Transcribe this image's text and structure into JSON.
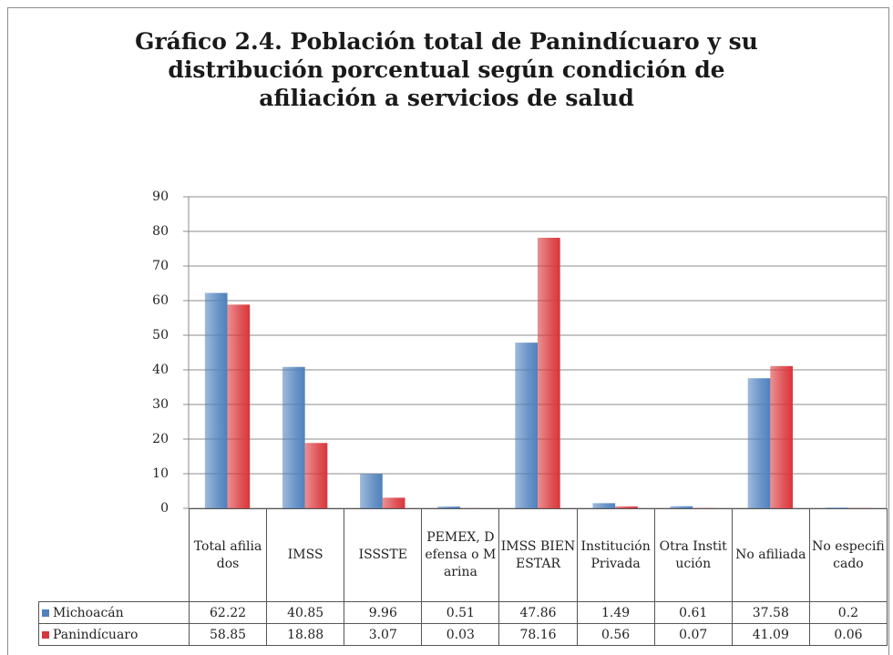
{
  "chart_data": {
    "type": "bar",
    "title": "Gráfico 2.4. Población total de Panindícuaro y su distribución porcentual según condición de afiliación a servicios de salud",
    "categories": [
      "Total afiliados",
      "IMSS",
      "ISSSTE",
      "PEMEX, Defensa o Marina",
      "IMSS BIENESTAR",
      "Institución Privada",
      "Otra Institución",
      "No afiliada",
      "No especificado"
    ],
    "series": [
      {
        "name": "Michoacán",
        "color": "#4f81bd",
        "values": [
          62.22,
          40.85,
          9.96,
          0.51,
          47.86,
          1.49,
          0.61,
          37.58,
          0.2
        ]
      },
      {
        "name": "Panindícuaro",
        "color": "#d9363a",
        "values": [
          58.85,
          18.88,
          3.07,
          0.03,
          78.16,
          0.56,
          0.07,
          41.09,
          0.06
        ]
      }
    ],
    "ylim": [
      0,
      90
    ],
    "yticks": [
      0,
      10,
      20,
      30,
      40,
      50,
      60,
      70,
      80,
      90
    ],
    "grid": true
  }
}
